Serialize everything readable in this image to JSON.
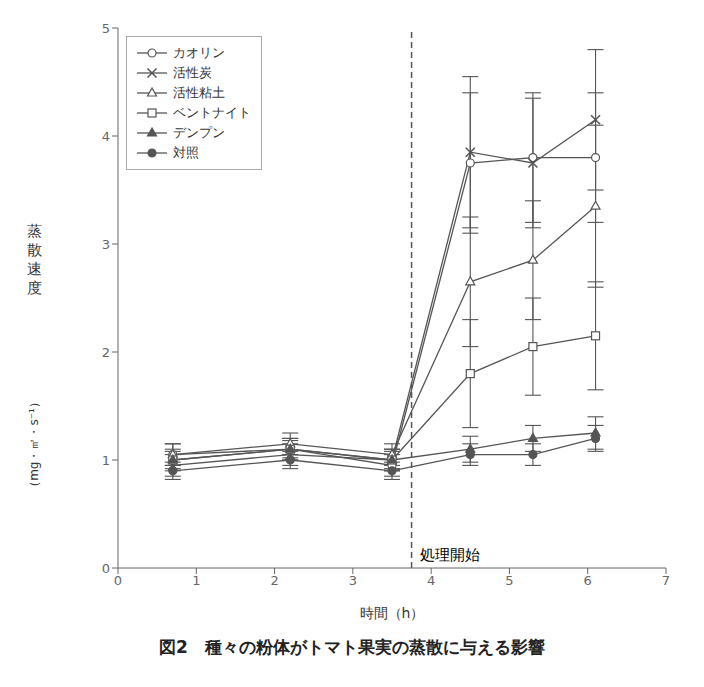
{
  "chart_data": {
    "type": "line",
    "title": "図2　種々の粉体がトマト果実の蒸散に与える影響",
    "x_label": "時間（h）",
    "y_label": "蒸散速度",
    "y_unit": "（mg・㎡・s⁻¹）",
    "x": [
      0.7,
      2.2,
      3.5,
      4.5,
      5.3,
      6.1
    ],
    "xlim": [
      0,
      7
    ],
    "ylim": [
      0,
      5
    ],
    "xticks": [
      0,
      1,
      2,
      3,
      4,
      5,
      6,
      7
    ],
    "yticks": [
      0,
      1,
      2,
      3,
      4,
      5
    ],
    "color": "#555555",
    "grid": false,
    "legend": "upper left",
    "annotations": [
      {
        "x": 3.75,
        "text": "処理開始",
        "line_style": "dashed"
      }
    ],
    "series": [
      {
        "name": "カオリン",
        "marker": "open_circle",
        "values": [
          1.05,
          1.1,
          0.95,
          3.75,
          3.8,
          3.8
        ],
        "errors": [
          0.1,
          0.1,
          0.1,
          0.65,
          0.6,
          0.6
        ]
      },
      {
        "name": "活性炭",
        "marker": "x",
        "values": [
          0.95,
          1.05,
          1.0,
          3.85,
          3.75,
          4.15
        ],
        "errors": [
          0.1,
          0.1,
          0.1,
          0.7,
          0.6,
          0.65
        ]
      },
      {
        "name": "活性粘土",
        "marker": "open_triangle",
        "values": [
          1.05,
          1.15,
          1.05,
          2.65,
          2.85,
          3.35
        ],
        "errors": [
          0.1,
          0.1,
          0.1,
          0.6,
          0.55,
          0.75
        ]
      },
      {
        "name": "ベントナイト",
        "marker": "open_square",
        "values": [
          1.0,
          1.1,
          1.0,
          1.8,
          2.05,
          2.15
        ],
        "errors": [
          0.1,
          0.1,
          0.1,
          0.5,
          0.45,
          0.5
        ]
      },
      {
        "name": "デンプン",
        "marker": "filled_triangle",
        "values": [
          1.0,
          1.1,
          1.0,
          1.1,
          1.2,
          1.25
        ],
        "errors": [
          0.08,
          0.08,
          0.08,
          0.12,
          0.12,
          0.15
        ]
      },
      {
        "name": "対照",
        "marker": "filled_circle",
        "values": [
          0.9,
          1.0,
          0.9,
          1.05,
          1.05,
          1.2
        ],
        "errors": [
          0.08,
          0.08,
          0.08,
          0.1,
          0.1,
          0.12
        ]
      }
    ]
  }
}
